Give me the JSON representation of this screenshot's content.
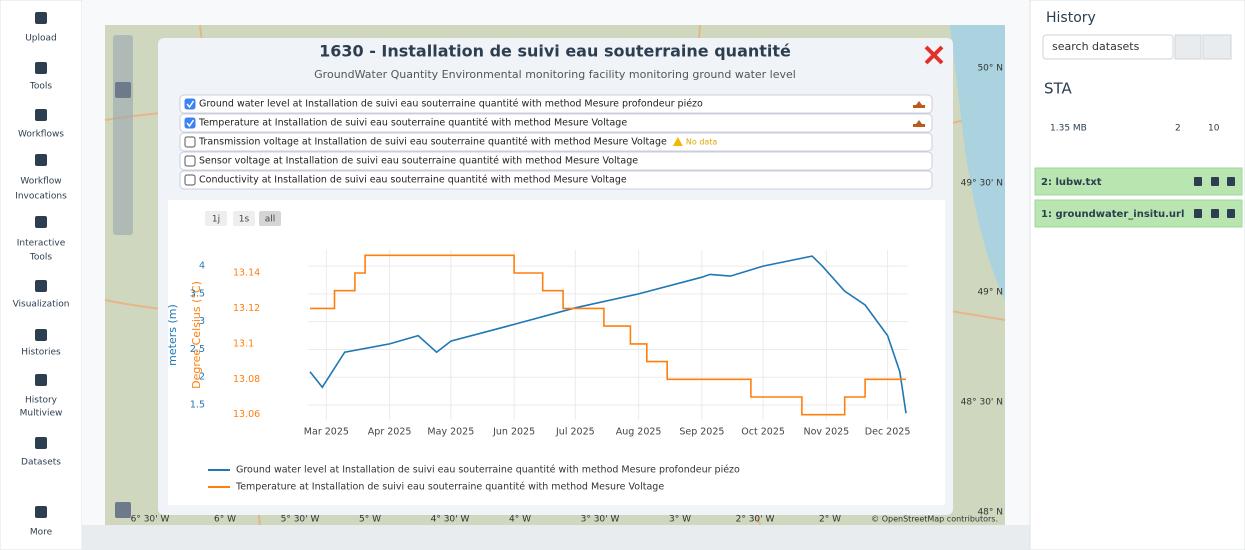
{
  "sidebar": {
    "items": [
      [
        "Upload"
      ],
      [
        "Tools"
      ],
      [
        "Workflows"
      ],
      [
        "Workflow",
        "Invocations"
      ],
      [
        "Interactive",
        "Tools"
      ],
      [
        "Visualization"
      ],
      [
        "Histories"
      ],
      [
        "History",
        "Multiview"
      ],
      [
        "Datasets"
      ],
      [
        "More"
      ]
    ]
  },
  "map": {
    "lon_labels": [
      "6° 30' W",
      "6° W",
      "5° 30' W",
      "5° W",
      "4° 30' W",
      "4° W",
      "3° 30' W",
      "3° W",
      "2° 30' W",
      "2° W"
    ],
    "lat_labels": [
      "50° N",
      "49° 30' N",
      "49° N",
      "48° 30' N",
      "48° N"
    ],
    "attribution": "© OpenStreetMap contributors."
  },
  "modal": {
    "title": "1630 - Installation de suivi eau souterraine quantité",
    "subtitle": "GroundWater Quantity Environmental monitoring facility monitoring ground water level",
    "datastreams": [
      {
        "label": "Ground water level at Installation de suivi eau souterraine quantité with method Mesure profondeur piézo",
        "checked": true
      },
      {
        "label": "Temperature at Installation de suivi eau souterraine quantité with method Mesure Voltage",
        "checked": true
      },
      {
        "label": "Transmission voltage at Installation de suivi eau souterraine quantité with method Mesure Voltage",
        "checked": false,
        "note": "No data"
      },
      {
        "label": "Sensor voltage at Installation de suivi eau souterraine quantité with method Mesure Voltage",
        "checked": false
      },
      {
        "label": "Conductivity at Installation de suivi eau souterraine quantité with method Mesure Voltage",
        "checked": false
      }
    ],
    "range_buttons": [
      "1j",
      "1s",
      "all"
    ]
  },
  "chart_data": {
    "type": "line",
    "ylabel": "meters (m)",
    "y2label": "Degree Celsius (°C)",
    "xlim": [
      "2025-02-20",
      "2025-12-11"
    ],
    "xticks": [
      {
        "value": "2025-03-01",
        "label": "Mar 2025"
      },
      {
        "value": "2025-04-01",
        "label": "Apr 2025"
      },
      {
        "value": "2025-05-01",
        "label": "May 2025"
      },
      {
        "value": "2025-06-01",
        "label": "Jun 2025"
      },
      {
        "value": "2025-07-01",
        "label": "Jul 2025"
      },
      {
        "value": "2025-08-01",
        "label": "Aug 2025"
      },
      {
        "value": "2025-09-01",
        "label": "Sep 2025"
      },
      {
        "value": "2025-10-01",
        "label": "Oct 2025"
      },
      {
        "value": "2025-11-01",
        "label": "Nov 2025"
      },
      {
        "value": "2025-12-01",
        "label": "Dec 2025"
      }
    ],
    "ylim": [
      1.23,
      4.29
    ],
    "yticks": [
      1.5,
      2,
      2.5,
      3,
      3.5,
      4
    ],
    "y2lim": [
      13.057,
      13.153
    ],
    "y2ticks": [
      13.06,
      13.08,
      13.1,
      13.12,
      13.14
    ],
    "grid": true,
    "series": [
      {
        "name": "Ground water level at Installation de suivi eau souterraine quantité with method Mesure profondeur piézo",
        "color": "#1f77b4",
        "x": [
          "2025-02-21",
          "2025-02-27",
          "2025-03-10",
          "2025-04-01",
          "2025-04-15",
          "2025-04-24",
          "2025-05-01",
          "2025-06-01",
          "2025-07-01",
          "2025-08-01",
          "2025-09-01",
          "2025-09-05",
          "2025-09-15",
          "2025-10-01",
          "2025-10-25",
          "2025-10-30",
          "2025-11-10",
          "2025-11-20",
          "2025-12-01",
          "2025-12-07",
          "2025-12-10"
        ],
        "values": [
          2.1,
          1.82,
          2.45,
          2.6,
          2.75,
          2.45,
          2.65,
          2.95,
          3.25,
          3.5,
          3.8,
          3.85,
          3.82,
          4.0,
          4.18,
          4.0,
          3.55,
          3.3,
          2.75,
          2.1,
          1.35
        ]
      },
      {
        "name": "Temperature at Installation de suivi eau souterraine quantité with method Mesure Voltage",
        "color": "#ff7f0e",
        "axis": "y2",
        "x": [
          "2025-02-21",
          "2025-03-05",
          "2025-03-05",
          "2025-03-15",
          "2025-03-15",
          "2025-03-20",
          "2025-03-20",
          "2025-04-01",
          "2025-04-01",
          "2025-06-01",
          "2025-06-01",
          "2025-06-15",
          "2025-06-15",
          "2025-06-25",
          "2025-06-25",
          "2025-07-15",
          "2025-07-15",
          "2025-07-28",
          "2025-07-28",
          "2025-08-05",
          "2025-08-05",
          "2025-08-15",
          "2025-08-15",
          "2025-09-25",
          "2025-09-25",
          "2025-10-20",
          "2025-10-20",
          "2025-11-10",
          "2025-11-10",
          "2025-11-20",
          "2025-11-20",
          "2025-12-10"
        ],
        "values": [
          13.12,
          13.12,
          13.13,
          13.13,
          13.14,
          13.14,
          13.15,
          13.15,
          13.15,
          13.15,
          13.14,
          13.14,
          13.13,
          13.13,
          13.12,
          13.12,
          13.11,
          13.11,
          13.1,
          13.1,
          13.09,
          13.09,
          13.08,
          13.08,
          13.07,
          13.07,
          13.06,
          13.06,
          13.07,
          13.07,
          13.08,
          13.08
        ]
      }
    ]
  },
  "history": {
    "title": "History",
    "search": "search datasets",
    "name": "STA",
    "size": "1.35 MB",
    "shown": "2",
    "deleted": "10",
    "datasets": [
      "2: lubw.txt",
      "1: groundwater_insitu.url"
    ]
  }
}
